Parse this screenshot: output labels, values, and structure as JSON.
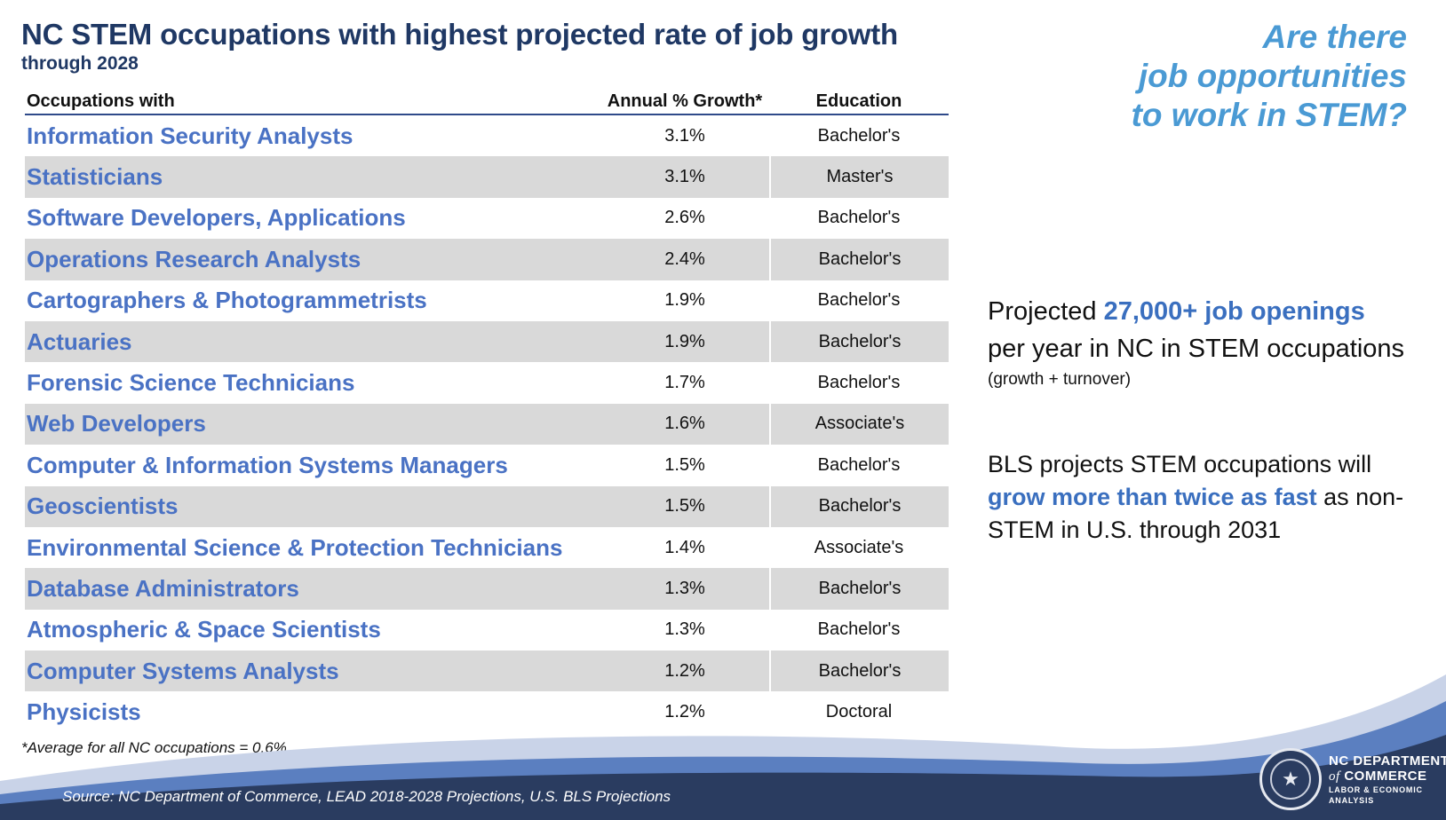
{
  "title": "NC STEM occupations with highest projected rate of job growth",
  "subtitle": "through 2028",
  "table": {
    "headers": [
      "Occupations with",
      "Annual % Growth*",
      "Education"
    ],
    "rows": [
      {
        "occupation": "Information Security Analysts",
        "growth": "3.1%",
        "education": "Bachelor's"
      },
      {
        "occupation": "Statisticians",
        "growth": "3.1%",
        "education": "Master's"
      },
      {
        "occupation": "Software Developers, Applications",
        "growth": "2.6%",
        "education": "Bachelor's"
      },
      {
        "occupation": "Operations Research Analysts",
        "growth": "2.4%",
        "education": "Bachelor's"
      },
      {
        "occupation": "Cartographers & Photogrammetrists",
        "growth": "1.9%",
        "education": "Bachelor's"
      },
      {
        "occupation": "Actuaries",
        "growth": "1.9%",
        "education": "Bachelor's"
      },
      {
        "occupation": "Forensic Science Technicians",
        "growth": "1.7%",
        "education": "Bachelor's"
      },
      {
        "occupation": "Web Developers",
        "growth": "1.6%",
        "education": "Associate's"
      },
      {
        "occupation": "Computer & Information Systems Managers",
        "growth": "1.5%",
        "education": "Bachelor's"
      },
      {
        "occupation": "Geoscientists",
        "growth": "1.5%",
        "education": "Bachelor's"
      },
      {
        "occupation": "Environmental Science & Protection Technicians",
        "growth": "1.4%",
        "education": "Associate's"
      },
      {
        "occupation": "Database Administrators",
        "growth": "1.3%",
        "education": "Bachelor's"
      },
      {
        "occupation": "Atmospheric & Space Scientists",
        "growth": "1.3%",
        "education": "Bachelor's"
      },
      {
        "occupation": "Computer Systems Analysts",
        "growth": "1.2%",
        "education": "Bachelor's"
      },
      {
        "occupation": "Physicists",
        "growth": "1.2%",
        "education": "Doctoral"
      }
    ]
  },
  "footnote": "*Average for all NC occupations = 0.6%",
  "question": {
    "line1": "Are there",
    "line2": "job opportunities",
    "line3": "to work in STEM?"
  },
  "projection": {
    "prefix": "Projected ",
    "highlight": "27,000+ job openings",
    "line2": "per year in NC in STEM occupations",
    "note": "(growth + turnover)"
  },
  "bls": {
    "line1": "BLS projects STEM occupations will",
    "highlight": "grow more than twice as fast",
    "line2_suffix": " as non-",
    "line3": "STEM in U.S. through 2031"
  },
  "source": "Source: NC Department of Commerce, LEAD 2018-2028 Projections, U.S. BLS Projections",
  "logo": {
    "line1": "NC DEPARTMENT",
    "line2_of": "of",
    "line2_rest": " COMMERCE",
    "line3": "LABOR & ECONOMIC",
    "line4": "ANALYSIS"
  },
  "colors": {
    "title": "#1f3864",
    "occupation": "#4a72c4",
    "accent": "#4a9ad4",
    "footer_dark": "#2a3c60"
  }
}
